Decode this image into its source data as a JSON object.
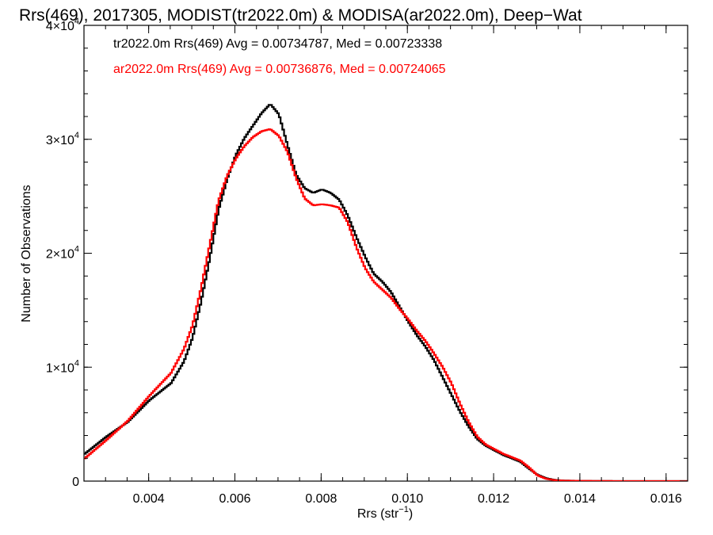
{
  "chart_data": {
    "type": "line",
    "title": "Rrs(469), 2017305, MODIST(tr2022.0m) & MODISA(ar2022.0m), Deep−Wat",
    "xlabel_base": "Rrs (str",
    "xlabel_sup": "−1",
    "xlabel_end": ")",
    "ylabel": "Number of Observations",
    "xlim": [
      0.0025,
      0.0165
    ],
    "ylim": [
      0,
      40000
    ],
    "x_ticks": [
      {
        "value": 0.004,
        "label": "0.004"
      },
      {
        "value": 0.006,
        "label": "0.006"
      },
      {
        "value": 0.008,
        "label": "0.008"
      },
      {
        "value": 0.01,
        "label": "0.010"
      },
      {
        "value": 0.012,
        "label": "0.012"
      },
      {
        "value": 0.014,
        "label": "0.014"
      },
      {
        "value": 0.016,
        "label": "0.016"
      }
    ],
    "y_ticks": [
      {
        "value": 0,
        "mant": "0",
        "exp": ""
      },
      {
        "value": 10000,
        "mant": "1×10",
        "exp": "4"
      },
      {
        "value": 20000,
        "mant": "2×10",
        "exp": "4"
      },
      {
        "value": 30000,
        "mant": "3×10",
        "exp": "4"
      },
      {
        "value": 40000,
        "mant": "4×10",
        "exp": "4"
      }
    ],
    "annotations": [
      {
        "text": "tr2022.0m Rrs(469) Avg = 0.00734787, Med = 0.00723338",
        "color": "#000000"
      },
      {
        "text": "ar2022.0m Rrs(469) Avg = 0.00736876, Med = 0.00724065",
        "color": "#ff0000"
      }
    ],
    "series": [
      {
        "color": "#000000",
        "points": [
          [
            0.0025,
            2400
          ],
          [
            0.003,
            3900
          ],
          [
            0.0035,
            5200
          ],
          [
            0.004,
            7100
          ],
          [
            0.0045,
            8600
          ],
          [
            0.0048,
            10500
          ],
          [
            0.005,
            12600
          ],
          [
            0.0052,
            15800
          ],
          [
            0.0054,
            19600
          ],
          [
            0.0056,
            23800
          ],
          [
            0.0058,
            26500
          ],
          [
            0.006,
            28600
          ],
          [
            0.0062,
            30100
          ],
          [
            0.0064,
            31200
          ],
          [
            0.0066,
            32300
          ],
          [
            0.0068,
            33100
          ],
          [
            0.007,
            32200
          ],
          [
            0.0072,
            29500
          ],
          [
            0.0074,
            26900
          ],
          [
            0.0076,
            25700
          ],
          [
            0.0078,
            25300
          ],
          [
            0.008,
            25600
          ],
          [
            0.0082,
            25300
          ],
          [
            0.0084,
            24700
          ],
          [
            0.0086,
            23300
          ],
          [
            0.0088,
            21400
          ],
          [
            0.009,
            19700
          ],
          [
            0.0092,
            18200
          ],
          [
            0.0094,
            17500
          ],
          [
            0.0096,
            16600
          ],
          [
            0.0098,
            15300
          ],
          [
            0.01,
            14000
          ],
          [
            0.0102,
            12800
          ],
          [
            0.0104,
            11800
          ],
          [
            0.0106,
            10600
          ],
          [
            0.0108,
            9100
          ],
          [
            0.011,
            7600
          ],
          [
            0.0112,
            6100
          ],
          [
            0.0114,
            4800
          ],
          [
            0.0116,
            3700
          ],
          [
            0.0118,
            3100
          ],
          [
            0.012,
            2700
          ],
          [
            0.0122,
            2300
          ],
          [
            0.0124,
            2000
          ],
          [
            0.0126,
            1700
          ],
          [
            0.0128,
            1100
          ],
          [
            0.013,
            550
          ],
          [
            0.0132,
            250
          ],
          [
            0.0134,
            100
          ],
          [
            0.0136,
            50
          ],
          [
            0.014,
            20
          ],
          [
            0.015,
            0
          ],
          [
            0.0165,
            0
          ]
        ]
      },
      {
        "color": "#ff0000",
        "points": [
          [
            0.0025,
            2000
          ],
          [
            0.003,
            3600
          ],
          [
            0.0035,
            5300
          ],
          [
            0.004,
            7500
          ],
          [
            0.0045,
            9500
          ],
          [
            0.0048,
            11600
          ],
          [
            0.005,
            13700
          ],
          [
            0.0052,
            17000
          ],
          [
            0.0054,
            20800
          ],
          [
            0.0056,
            24600
          ],
          [
            0.0058,
            26800
          ],
          [
            0.006,
            28300
          ],
          [
            0.0062,
            29400
          ],
          [
            0.0064,
            30200
          ],
          [
            0.0066,
            30700
          ],
          [
            0.0068,
            30900
          ],
          [
            0.007,
            30300
          ],
          [
            0.0072,
            28900
          ],
          [
            0.0074,
            26600
          ],
          [
            0.0076,
            24800
          ],
          [
            0.0078,
            24200
          ],
          [
            0.008,
            24300
          ],
          [
            0.0082,
            24200
          ],
          [
            0.0084,
            24000
          ],
          [
            0.0086,
            22700
          ],
          [
            0.0088,
            20500
          ],
          [
            0.009,
            18700
          ],
          [
            0.0092,
            17500
          ],
          [
            0.0094,
            16800
          ],
          [
            0.0096,
            16100
          ],
          [
            0.0098,
            15100
          ],
          [
            0.01,
            14200
          ],
          [
            0.0102,
            13200
          ],
          [
            0.0104,
            12300
          ],
          [
            0.0106,
            11200
          ],
          [
            0.0108,
            10000
          ],
          [
            0.011,
            8600
          ],
          [
            0.0112,
            6800
          ],
          [
            0.0114,
            5200
          ],
          [
            0.0116,
            3900
          ],
          [
            0.0118,
            3200
          ],
          [
            0.012,
            2800
          ],
          [
            0.0122,
            2400
          ],
          [
            0.0124,
            2100
          ],
          [
            0.0126,
            1800
          ],
          [
            0.0128,
            1200
          ],
          [
            0.013,
            500
          ],
          [
            0.0132,
            200
          ],
          [
            0.0134,
            80
          ],
          [
            0.0136,
            40
          ],
          [
            0.014,
            20
          ],
          [
            0.015,
            0
          ],
          [
            0.0165,
            0
          ]
        ]
      }
    ]
  }
}
